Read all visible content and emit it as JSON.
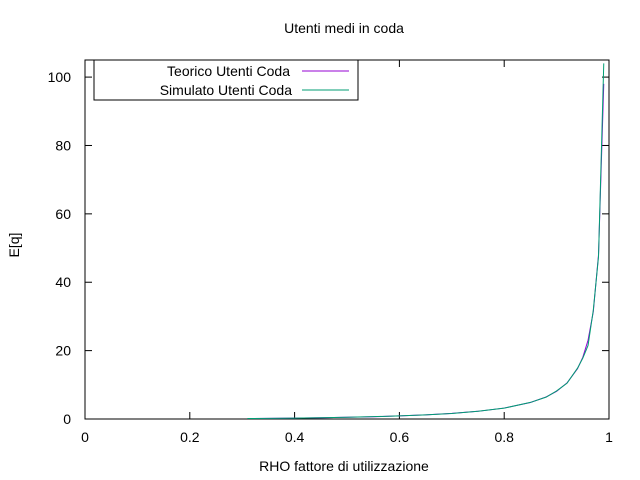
{
  "chart_data": {
    "type": "line",
    "title": "Utenti medi in coda",
    "xlabel": "RHO fattore di utilizzazione",
    "ylabel": "E[q]",
    "xlim": [
      0,
      1
    ],
    "ylim": [
      0,
      105
    ],
    "xticks": [
      0,
      0.2,
      0.4,
      0.6,
      0.8,
      1
    ],
    "xtick_labels": [
      "0",
      "0.2",
      "0.4",
      "0.6",
      "0.8",
      "1"
    ],
    "yticks": [
      0,
      20,
      40,
      60,
      80,
      100
    ],
    "ytick_labels": [
      "0",
      "20",
      "40",
      "60",
      "80",
      "100"
    ],
    "grid": false,
    "legend_position": "top-left",
    "series": [
      {
        "name": "Teorico Utenti Coda",
        "color": "#9400d3",
        "x": [
          0.31,
          0.35,
          0.4,
          0.45,
          0.5,
          0.55,
          0.6,
          0.65,
          0.7,
          0.75,
          0.8,
          0.85,
          0.88,
          0.9,
          0.92,
          0.94,
          0.95,
          0.96,
          0.97,
          0.98,
          0.99
        ],
        "y": [
          0.14,
          0.19,
          0.27,
          0.37,
          0.5,
          0.67,
          0.9,
          1.21,
          1.63,
          2.25,
          3.2,
          4.82,
          6.45,
          8.1,
          10.58,
          14.73,
          18.05,
          23.04,
          31.36,
          48.02,
          98.01
        ]
      },
      {
        "name": "Simulato Utenti Coda",
        "color": "#009e73",
        "x": [
          0.31,
          0.35,
          0.4,
          0.45,
          0.5,
          0.55,
          0.6,
          0.65,
          0.7,
          0.75,
          0.8,
          0.85,
          0.88,
          0.9,
          0.92,
          0.94,
          0.95,
          0.96,
          0.97,
          0.98,
          0.99
        ],
        "y": [
          0.14,
          0.19,
          0.27,
          0.38,
          0.5,
          0.68,
          0.9,
          1.22,
          1.62,
          2.27,
          3.18,
          4.85,
          6.4,
          8.2,
          10.5,
          14.9,
          17.8,
          21.5,
          31.8,
          47.5,
          104
        ]
      }
    ]
  }
}
